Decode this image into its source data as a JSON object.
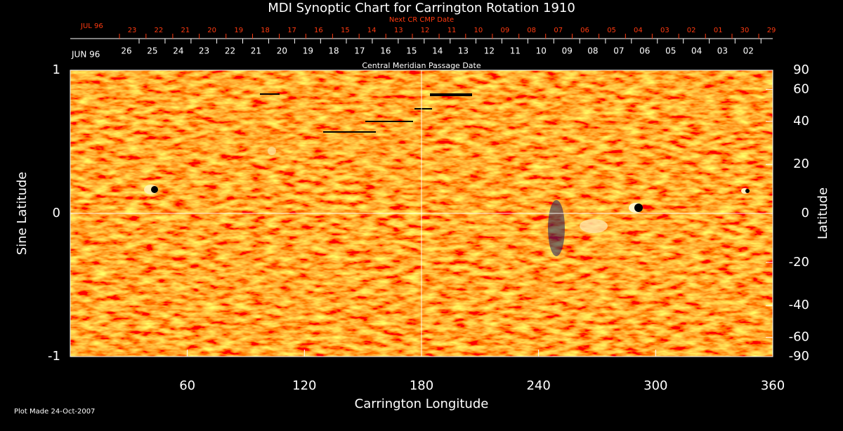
{
  "chart_data": {
    "type": "synoptic-map",
    "title": "MDI Synoptic Chart for Carrington Rotation 1910",
    "xlabel": "Carrington Longitude",
    "ylabel": "Sine Latitude",
    "y2label": "Latitude",
    "xlim": [
      0,
      360
    ],
    "xticks": [
      60,
      120,
      180,
      240,
      300,
      360
    ],
    "ylim": [
      -1,
      1
    ],
    "yticks": [
      -1,
      0,
      1
    ],
    "y2scale": "sine",
    "y2ticks": [
      90,
      60,
      40,
      20,
      0,
      -20,
      -40,
      -60,
      -90
    ],
    "cmp_axis": {
      "title": "Central Meridian Passage Date",
      "month_label": "JUN 96",
      "labels": [
        "26",
        "25",
        "24",
        "23",
        "22",
        "21",
        "20",
        "19",
        "18",
        "17",
        "16",
        "15",
        "14",
        "13",
        "12",
        "11",
        "10",
        "09",
        "08",
        "07",
        "06",
        "05",
        "04",
        "03",
        "02"
      ],
      "x": [
        28.8,
        42.1,
        55.4,
        68.6,
        81.9,
        95.2,
        108.5,
        121.8,
        135.0,
        148.3,
        161.6,
        174.9,
        188.2,
        201.4,
        214.7,
        228.0,
        241.3,
        254.6,
        267.8,
        281.1,
        294.4,
        307.7,
        321.0,
        334.2,
        347.5
      ]
    },
    "next_cmp_axis": {
      "title": "Next CR CMP Date",
      "month_label": "JUL 96",
      "labels": [
        "23",
        "22",
        "21",
        "20",
        "19",
        "18",
        "17",
        "16",
        "15",
        "14",
        "13",
        "12",
        "11",
        "10",
        "09",
        "08",
        "07",
        "06",
        "05",
        "04",
        "03",
        "02",
        "01",
        "30",
        "29"
      ],
      "x": [
        31.7,
        45.3,
        59.0,
        72.6,
        86.3,
        99.9,
        113.6,
        127.2,
        140.9,
        154.5,
        168.2,
        181.8,
        195.5,
        209.1,
        222.8,
        236.4,
        250.1,
        263.7,
        277.4,
        291.0,
        304.7,
        318.3,
        332.0,
        345.6,
        359.3
      ]
    },
    "footer": "Plot Made 24-Oct-2007"
  }
}
